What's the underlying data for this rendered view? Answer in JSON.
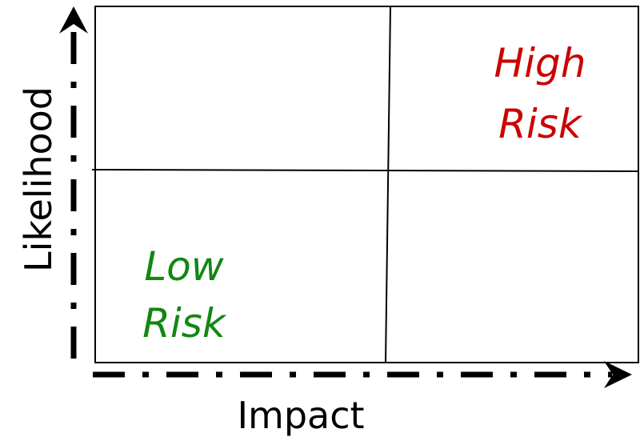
{
  "axes": {
    "x_label": "Impact",
    "y_label": "Likelihood"
  },
  "quadrants": {
    "high_risk": {
      "line1": "High",
      "line2": "Risk",
      "color": "#cc0000"
    },
    "low_risk": {
      "line1": "Low",
      "line2": "Risk",
      "color": "#118811"
    }
  },
  "colors": {
    "frame": "#000000",
    "background": "#ffffff"
  }
}
